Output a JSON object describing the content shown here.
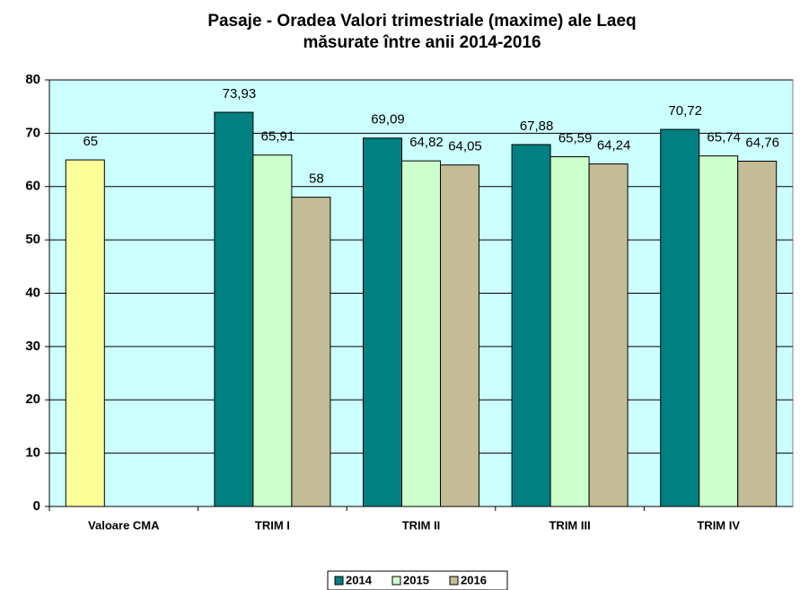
{
  "chart_data": {
    "type": "bar",
    "title": [
      "Pasaje - Oradea Valori trimestriale (maxime) ale Laeq",
      "măsurate între anii 2014-2016"
    ],
    "categories": [
      "Valoare CMA",
      "TRIM I",
      "TRIM II",
      "TRIM III",
      "TRIM IV"
    ],
    "series": [
      {
        "name": "2014",
        "color": "#008080",
        "colors": [
          "#ffff99",
          "#008080",
          "#008080",
          "#008080",
          "#008080"
        ],
        "values": [
          65,
          73.93,
          69.09,
          67.88,
          70.72
        ],
        "value_labels": [
          "65",
          "73,93",
          "69,09",
          "67,88",
          "70,72"
        ]
      },
      {
        "name": "2015",
        "color": "#ccffcc",
        "values": [
          null,
          65.91,
          64.82,
          65.59,
          65.74
        ],
        "value_labels": [
          null,
          "65,91",
          "64,82",
          "65,59",
          "65,74"
        ]
      },
      {
        "name": "2016",
        "color": "#c4bc96",
        "values": [
          null,
          58,
          64.05,
          64.24,
          64.76
        ],
        "value_labels": [
          null,
          "58",
          "64,05",
          "64,24",
          "64,76"
        ]
      }
    ],
    "ylim": [
      0,
      80
    ],
    "yticks": [
      0,
      10,
      20,
      30,
      40,
      50,
      60,
      70,
      80
    ],
    "grid": true,
    "plot_background": "#ccffff",
    "legend": "bottom"
  }
}
